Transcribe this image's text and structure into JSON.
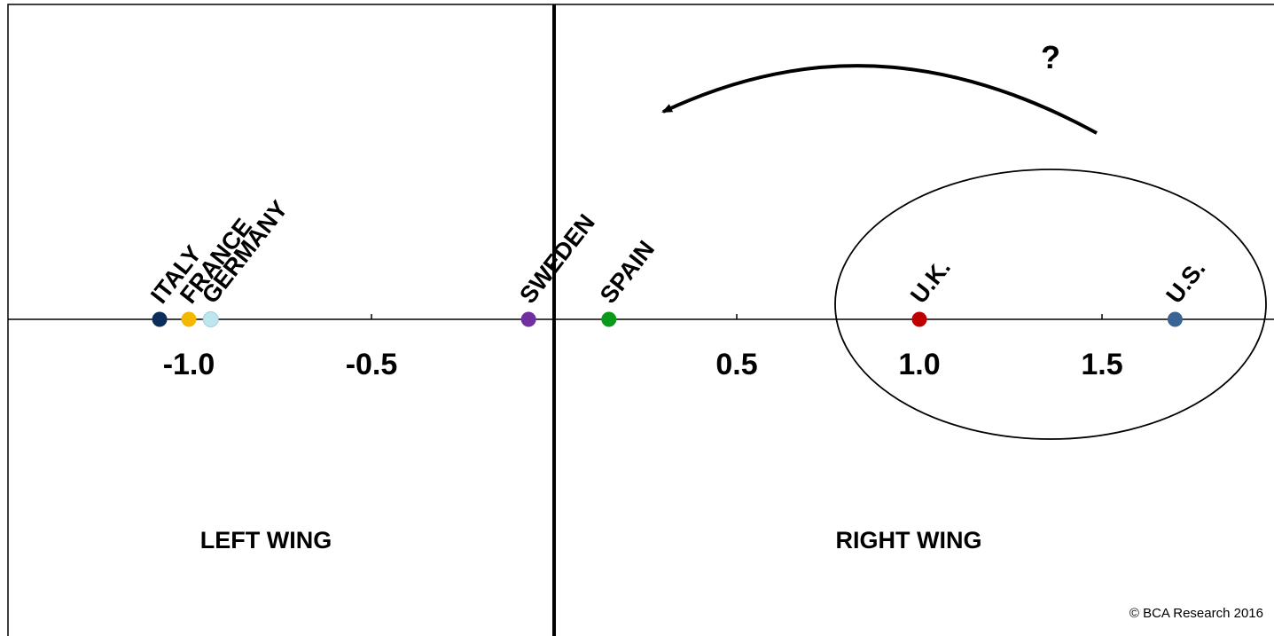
{
  "chart_data": {
    "type": "scatter",
    "title": "",
    "xlabel": "",
    "ylabel": "",
    "xlim": [
      -1.48,
      2.0
    ],
    "x_ticks": [
      -1.0,
      -0.5,
      0.5,
      1.0,
      1.5
    ],
    "x_tick_labels": [
      "-1.0",
      "-0.5",
      "0.5",
      "1.0",
      "1.5"
    ],
    "grid": false,
    "legend": "none",
    "points": [
      {
        "label": "ITALY",
        "x": -1.08,
        "color": "#0d2d5a"
      },
      {
        "label": "FRANCE",
        "x": -1.0,
        "color": "#f5b800"
      },
      {
        "label": "GERMANY",
        "x": -0.94,
        "color": "#bfe6ee"
      },
      {
        "label": "SWEDEN",
        "x": -0.07,
        "color": "#7030a0"
      },
      {
        "label": "SPAIN",
        "x": 0.15,
        "color": "#0a9a1a"
      },
      {
        "label": "U.K.",
        "x": 1.0,
        "color": "#c00000"
      },
      {
        "label": "U.S.",
        "x": 1.7,
        "color": "#3a6494"
      }
    ],
    "region_labels": {
      "left": "LEFT WING",
      "right": "RIGHT WING"
    },
    "annotation": "?",
    "credit": "© BCA Research 2016"
  }
}
